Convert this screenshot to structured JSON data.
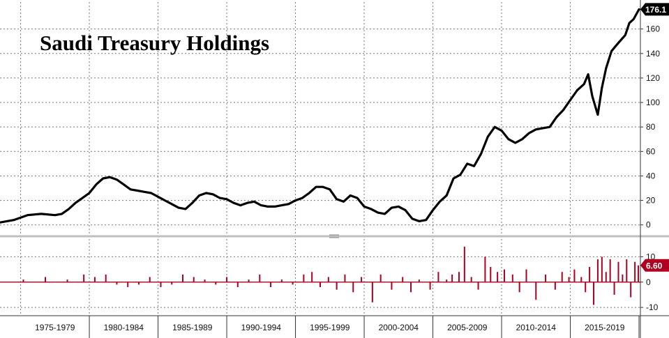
{
  "chart_data": {
    "type": "line",
    "title": "Saudi Treasury Holdings",
    "x_range": [
      1973.5,
      2020.1
    ],
    "x_category_labels": [
      "1975-1979",
      "1980-1984",
      "1985-1989",
      "1990-1994",
      "1995-1999",
      "2000-2004",
      "2005-2009",
      "2010-2014",
      "2015-2019"
    ],
    "grid": true,
    "panels": [
      {
        "name": "",
        "type": "line",
        "ylim": [
          -7,
          182
        ],
        "yticks": [
          0,
          20,
          40,
          60,
          80,
          100,
          120,
          140,
          160
        ],
        "last_value_label": "176.1",
        "x": [
          1973.5,
          1974.5,
          1975.5,
          1976.5,
          1977.5,
          1978.0,
          1978.5,
          1979.0,
          1979.5,
          1980.0,
          1980.5,
          1981.0,
          1981.5,
          1982.0,
          1982.5,
          1983.0,
          1983.5,
          1984.0,
          1984.5,
          1985.0,
          1985.5,
          1986.0,
          1986.5,
          1987.0,
          1987.5,
          1988.0,
          1988.5,
          1989.0,
          1989.5,
          1990.0,
          1990.5,
          1991.0,
          1991.5,
          1992.0,
          1992.5,
          1993.0,
          1993.5,
          1994.0,
          1994.5,
          1995.0,
          1995.5,
          1996.0,
          1996.5,
          1997.0,
          1997.5,
          1998.0,
          1998.5,
          1999.0,
          1999.5,
          2000.0,
          2000.5,
          2001.0,
          2001.5,
          2002.0,
          2002.5,
          2003.0,
          2003.5,
          2004.0,
          2004.5,
          2005.0,
          2005.5,
          2006.0,
          2006.5,
          2007.0,
          2007.5,
          2008.0,
          2008.5,
          2009.0,
          2009.5,
          2010.0,
          2010.5,
          2011.0,
          2011.5,
          2012.0,
          2012.5,
          2013.0,
          2013.5,
          2014.0,
          2014.5,
          2015.0,
          2015.5,
          2016.0,
          2016.3,
          2016.6,
          2017.0,
          2017.3,
          2017.6,
          2018.0,
          2018.3,
          2018.6,
          2019.0,
          2019.3,
          2019.6,
          2020.0
        ],
        "values": [
          2,
          4,
          8,
          9,
          8,
          9,
          13,
          18,
          22,
          26,
          33,
          38,
          39,
          37,
          33,
          29,
          28,
          27,
          26,
          23,
          20,
          17,
          14,
          13,
          18,
          24,
          26,
          25,
          22,
          21,
          18,
          16,
          18,
          19,
          16,
          15,
          15,
          16,
          17,
          20,
          22,
          26,
          31,
          31,
          29,
          21,
          19,
          24,
          22,
          15,
          13,
          10,
          9,
          14,
          15,
          12,
          5,
          3,
          4,
          12,
          19,
          24,
          38,
          41,
          50,
          48,
          58,
          72,
          80,
          77,
          70,
          67,
          70,
          75,
          78,
          79,
          80,
          88,
          94,
          102,
          110,
          115,
          123,
          105,
          90,
          112,
          128,
          142,
          146,
          150,
          155,
          165,
          168,
          176.1
        ]
      },
      {
        "name": "",
        "type": "bar",
        "ylim": [
          -13,
          17
        ],
        "yticks": [
          -10,
          0,
          10
        ],
        "last_value_label": "6.60",
        "x": [
          1975.2,
          1976.8,
          1978.4,
          1979.6,
          1980.4,
          1981.2,
          1982.0,
          1982.8,
          1983.6,
          1984.4,
          1985.2,
          1986.0,
          1986.8,
          1987.6,
          1988.4,
          1989.2,
          1990.0,
          1990.8,
          1991.6,
          1992.4,
          1993.2,
          1994.0,
          1994.8,
          1995.6,
          1996.2,
          1996.8,
          1997.4,
          1998.0,
          1998.6,
          1999.2,
          1999.8,
          2000.6,
          2001.2,
          2002.0,
          2002.8,
          2003.4,
          2004.0,
          2004.8,
          2005.4,
          2006.0,
          2006.4,
          2006.9,
          2007.3,
          2007.8,
          2008.3,
          2008.8,
          2009.2,
          2009.7,
          2010.2,
          2010.8,
          2011.3,
          2011.8,
          2012.5,
          2013.2,
          2013.9,
          2014.4,
          2014.9,
          2015.3,
          2015.8,
          2016.1,
          2016.4,
          2016.7,
          2017.0,
          2017.3,
          2017.6,
          2017.9,
          2018.2,
          2018.5,
          2018.8,
          2019.1,
          2019.4,
          2019.7,
          2019.95
        ],
        "values": [
          1,
          2,
          1,
          3,
          2,
          3,
          -1,
          -2,
          -1,
          2,
          -2,
          -1,
          3,
          2,
          1,
          -1,
          2,
          -2,
          1,
          3,
          -2,
          1,
          -1,
          3,
          4,
          -2,
          2,
          -3,
          3,
          -4,
          2,
          -8,
          3,
          -3,
          2,
          -4,
          1,
          -3,
          4,
          1,
          3,
          4,
          14,
          2,
          -3,
          10,
          6,
          4,
          5,
          3,
          -4,
          5,
          -7,
          3,
          -3,
          4,
          2,
          5,
          2,
          -4,
          6,
          -9,
          9,
          10,
          4,
          9,
          -5,
          8,
          3,
          9,
          -6,
          8,
          6.6
        ]
      }
    ]
  },
  "colors": {
    "line": "#000000",
    "bar": "#b00020",
    "bar_tag": "#b00020",
    "line_tag": "#000000",
    "grid": "#777777",
    "axis": "#333333",
    "separator": "#bfbfbf"
  }
}
